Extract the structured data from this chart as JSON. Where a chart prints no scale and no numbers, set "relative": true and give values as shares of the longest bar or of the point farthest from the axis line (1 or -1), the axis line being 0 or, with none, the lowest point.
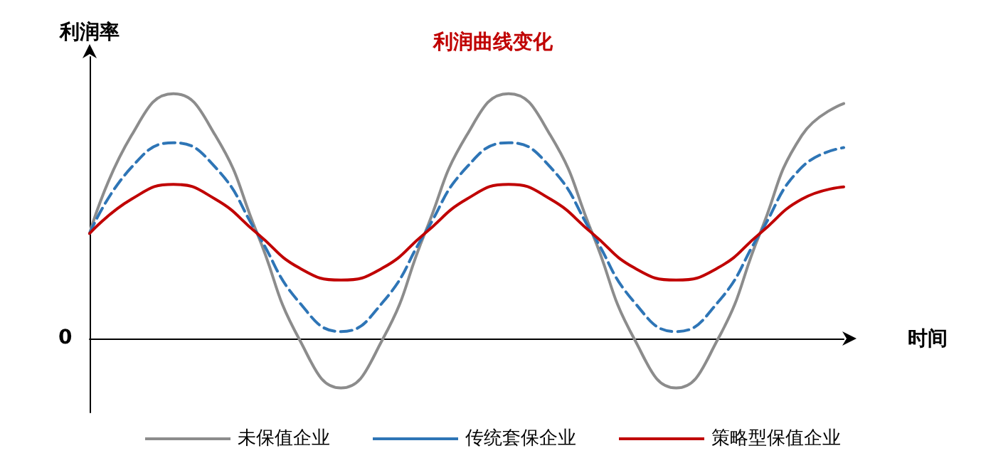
{
  "chart_data": {
    "type": "line",
    "title": "利润曲线变化",
    "ylabel": "利润率",
    "xlabel": "时间",
    "annotations": [
      "0"
    ],
    "relative": true,
    "categories": [
      null,
      null,
      null,
      null,
      null,
      null,
      null,
      null,
      null,
      null,
      null,
      null,
      null,
      null,
      null,
      null,
      null,
      null,
      null
    ],
    "series": [
      {
        "name": "未保值企业",
        "color": "#8c8c8c",
        "line_style": "solid",
        "values": [
          0.43,
          0.83,
          1.0,
          0.83,
          0.43,
          0.0,
          -0.2,
          0.0,
          0.43,
          0.83,
          1.0,
          0.83,
          0.43,
          0.0,
          -0.2,
          0.0,
          0.43,
          0.83,
          0.96
        ]
      },
      {
        "name": "传统套保企业",
        "color": "#2e75b6",
        "line_style": "dashed",
        "values": [
          0.43,
          0.7,
          0.8,
          0.7,
          0.43,
          0.15,
          0.03,
          0.15,
          0.43,
          0.7,
          0.8,
          0.7,
          0.43,
          0.15,
          0.03,
          0.15,
          0.43,
          0.7,
          0.78
        ]
      },
      {
        "name": "策略型保值企业",
        "color": "#c00000",
        "line_style": "solid",
        "values": [
          0.43,
          0.57,
          0.63,
          0.57,
          0.43,
          0.29,
          0.24,
          0.29,
          0.43,
          0.57,
          0.63,
          0.57,
          0.43,
          0.29,
          0.24,
          0.29,
          0.43,
          0.57,
          0.62
        ]
      }
    ],
    "marker": "none",
    "legend": "bottom",
    "grid": false
  }
}
